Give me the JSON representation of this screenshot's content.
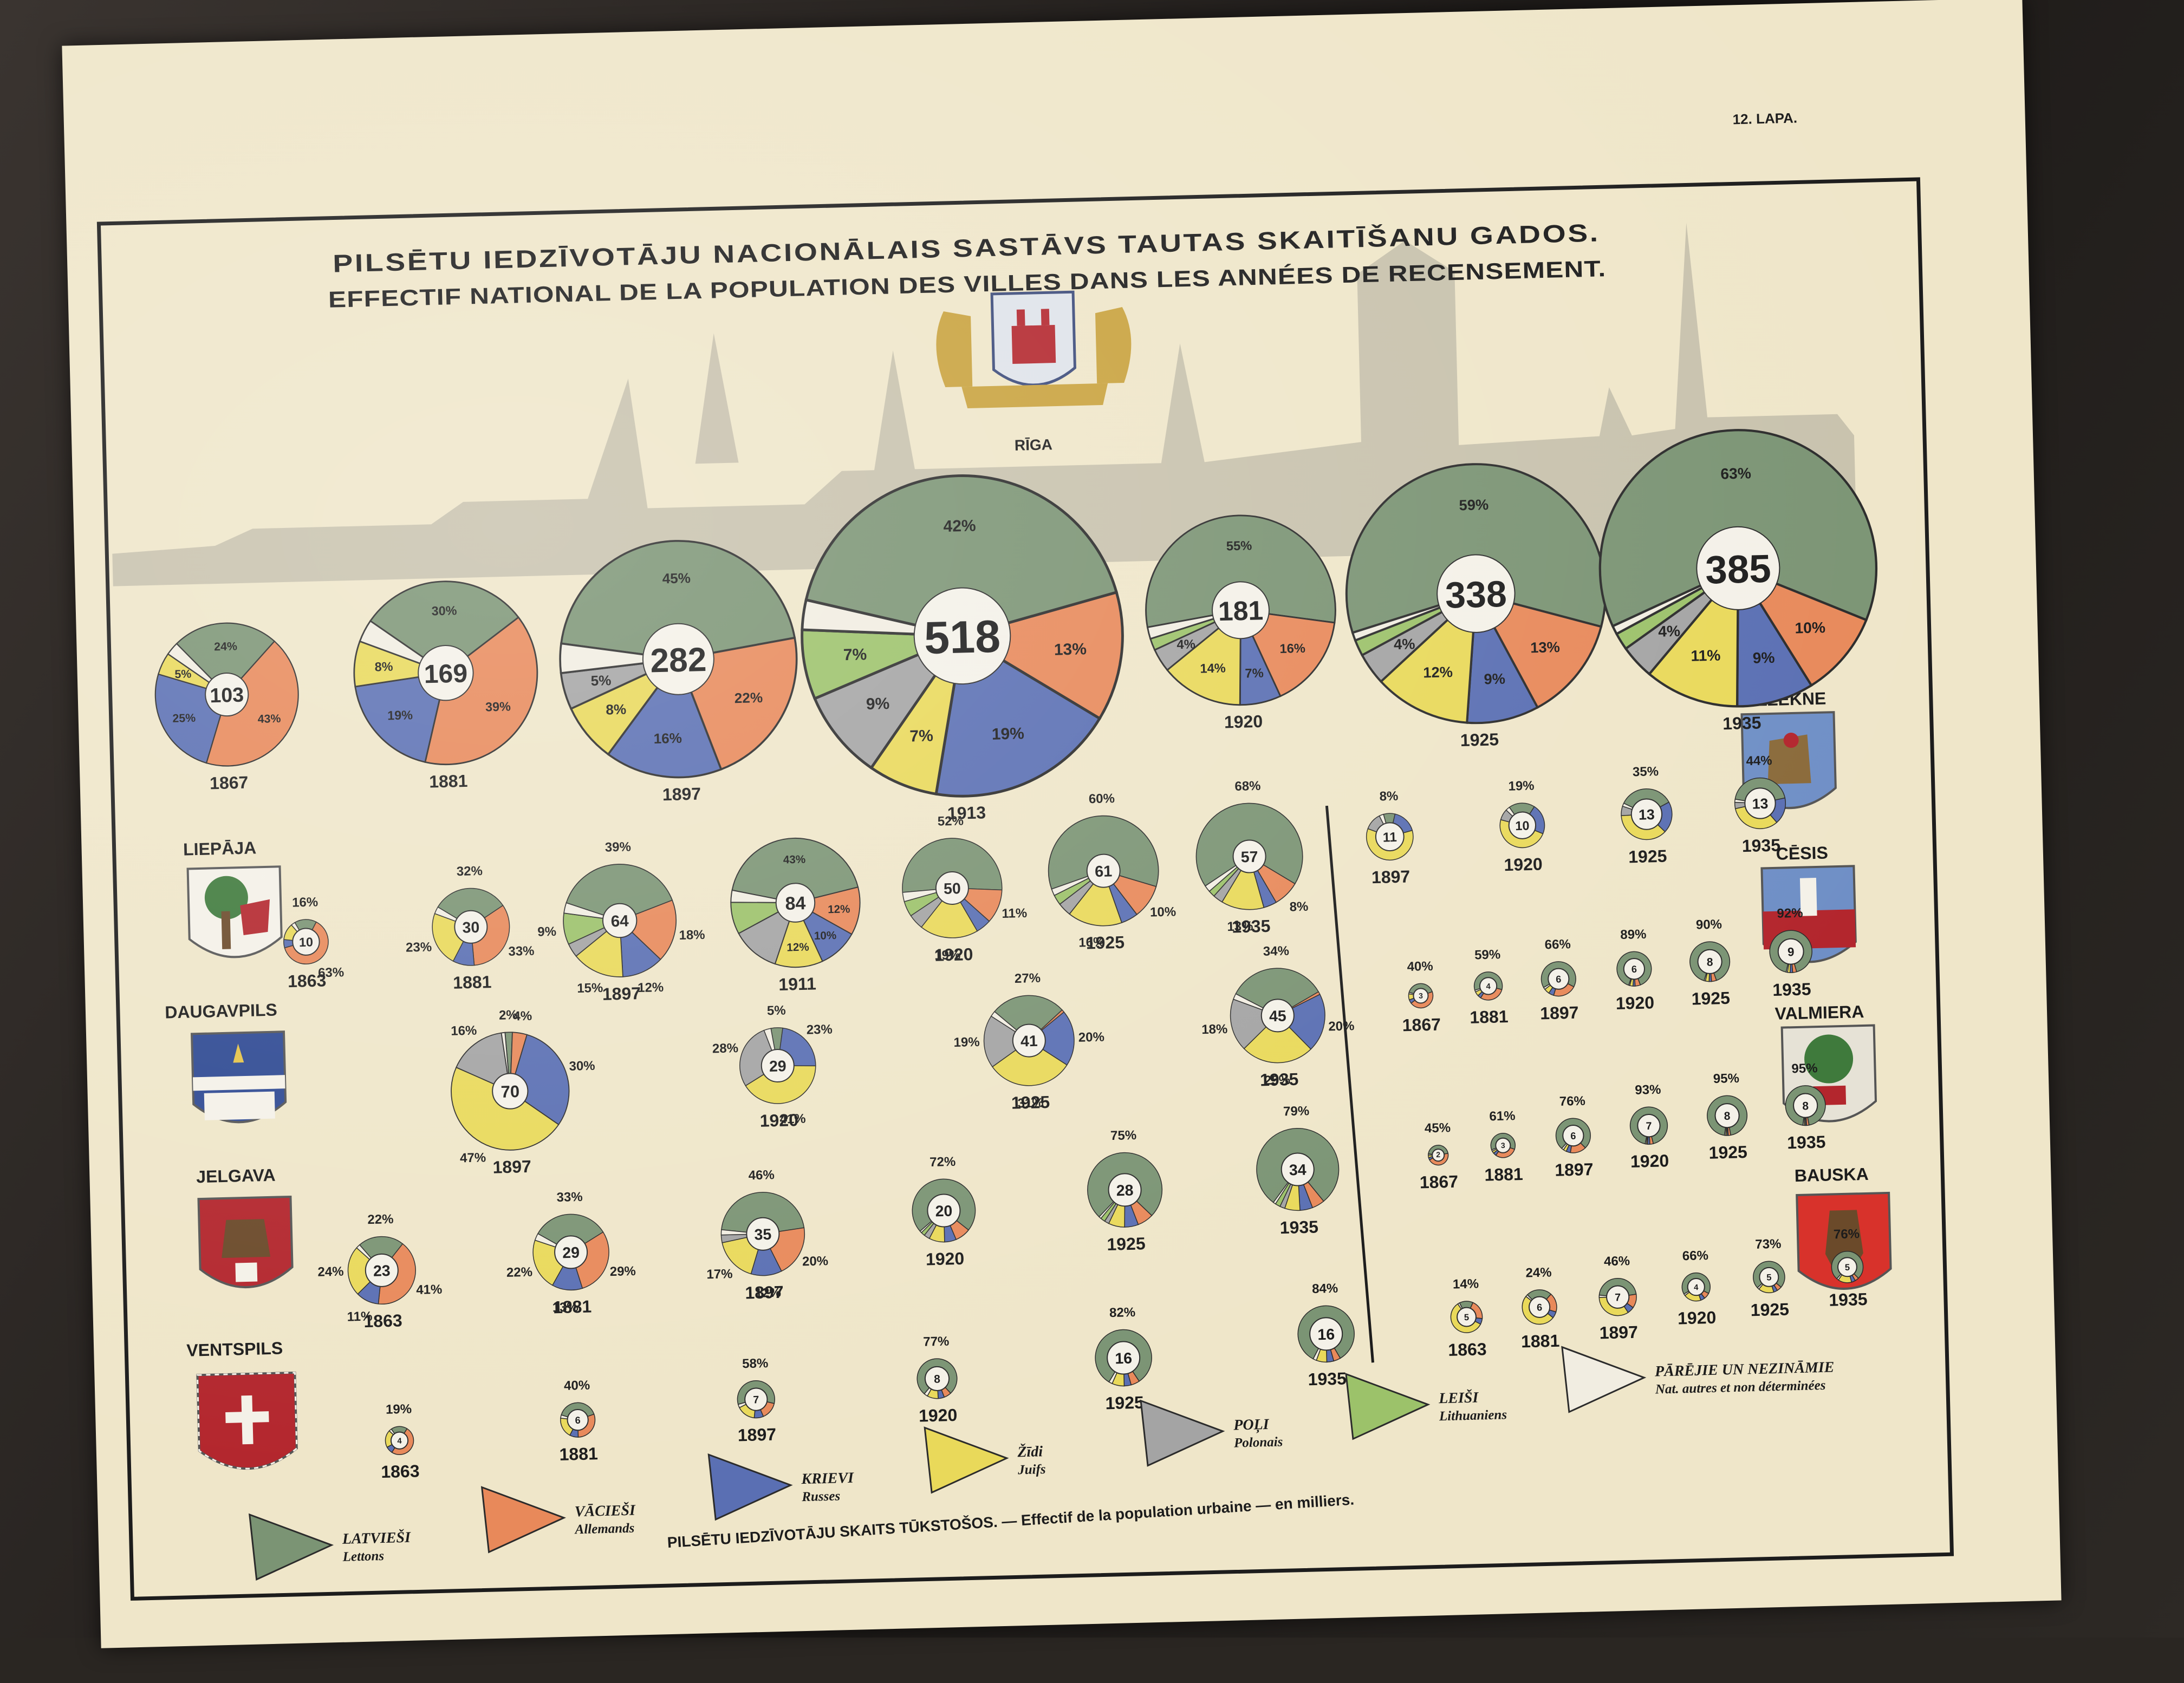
{
  "page_number": "12. LAPA.",
  "title_lv": "PILSĒTU IEDZĪVOTĀJU NACIONĀLAIS SASTĀVS TAUTAS SKAITĪŠANU GADOS.",
  "title_fr": "EFFECTIF NATIONAL DE LA POPULATION DES VILLES DANS LES ANNÉES DE RECENSEMENT.",
  "footer_note": "PILSĒTU IEDZĪVOTĀJU SKAITS TŪKSTOŠOS. — Effectif de la population urbaine — en milliers.",
  "colors": {
    "Latvieši": "#7b9474",
    "Vācieši": "#e8895a",
    "Krievi": "#5a6fb3",
    "Žīdi": "#e9d95a",
    "Poļi": "#a4a4a4",
    "Leiši": "#9cc26a",
    "Pārējie": "#f1ede1"
  },
  "legend": [
    {
      "key": "Latvieši",
      "label": "LATVIEŠI",
      "sub": "Lettons"
    },
    {
      "key": "Vācieši",
      "label": "VĀCIEŠI",
      "sub": "Allemands"
    },
    {
      "key": "Krievi",
      "label": "KRIEVI",
      "sub": "Russes"
    },
    {
      "key": "Žīdi",
      "label": "Žīdi",
      "sub": "Juifs"
    },
    {
      "key": "Poļi",
      "label": "POĻI",
      "sub": "Polonais"
    },
    {
      "key": "Leiši",
      "label": "LEIŠI",
      "sub": "Lithuaniens"
    },
    {
      "key": "Pārējie",
      "label": "PĀRĒJIE UN NEZINĀMIE",
      "sub": "Nat. autres et non déterminées"
    }
  ],
  "chart_data": [
    {
      "type": "pie",
      "city": "RĪGA",
      "pies": [
        {
          "year": "1867",
          "total": 103,
          "slices": {
            "Latvieši": 24,
            "Vācieši": 43,
            "Krievi": 25,
            "Žīdi": 5,
            "Pārējie": 3
          },
          "labels": {
            "Latvieši": "24%",
            "Vācieši": "43%",
            "Krievi": "25%",
            "Žīdi": "5%"
          }
        },
        {
          "year": "1881",
          "total": 169,
          "slices": {
            "Latvieši": 30,
            "Vācieši": 39,
            "Krievi": 19,
            "Žīdi": 8,
            "Pārējie": 4
          },
          "labels": {
            "Latvieši": "30%",
            "Vācieši": "39%",
            "Krievi": "19%",
            "Žīdi": "8%"
          }
        },
        {
          "year": "1897",
          "total": 282,
          "slices": {
            "Latvieši": 45,
            "Vācieši": 22,
            "Krievi": 16,
            "Žīdi": 8,
            "Poļi": 5,
            "Pārējie": 4
          },
          "labels": {
            "Latvieši": "45%",
            "Vācieši": "22%",
            "Krievi": "16%",
            "Žīdi": "8%",
            "Poļi": "5%"
          }
        },
        {
          "year": "1913",
          "total": 518,
          "slices": {
            "Latvieši": 42,
            "Vācieši": 13,
            "Krievi": 19,
            "Žīdi": 7,
            "Poļi": 9,
            "Leiši": 7,
            "Pārējie": 3
          },
          "labels": {
            "Latvieši": "42%",
            "Vācieši": "13%",
            "Krievi": "19%",
            "Žīdi": "7%",
            "Poļi": "9%",
            "Leiši": "7%"
          }
        },
        {
          "year": "1920",
          "total": 181,
          "slices": {
            "Latvieši": 55,
            "Vācieši": 16,
            "Krievi": 7,
            "Žīdi": 14,
            "Poļi": 4,
            "Leiši": 2,
            "Pārējie": 2
          },
          "labels": {
            "Latvieši": "55%",
            "Vācieši": "16%",
            "Krievi": "7%",
            "Žīdi": "14%",
            "Poļi": "4%"
          }
        },
        {
          "year": "1925",
          "total": 338,
          "slices": {
            "Latvieši": 59,
            "Vācieši": 13,
            "Krievi": 9,
            "Žīdi": 12,
            "Poļi": 4,
            "Leiši": 2,
            "Pārējie": 1
          },
          "labels": {
            "Latvieši": "59%",
            "Vācieši": "13%",
            "Krievi": "9%",
            "Žīdi": "12%",
            "Poļi": "4%"
          }
        },
        {
          "year": "1935",
          "total": 385,
          "slices": {
            "Latvieši": 63,
            "Vācieši": 10,
            "Krievi": 9,
            "Žīdi": 11,
            "Poļi": 4,
            "Leiši": 2,
            "Pārējie": 1
          },
          "labels": {
            "Latvieši": "63%",
            "Vācieši": "10%",
            "Krievi": "9%",
            "Žīdi": "11%",
            "Poļi": "4%"
          }
        }
      ]
    },
    {
      "type": "pie",
      "city": "LIEPĀJA",
      "pies": [
        {
          "year": "1863",
          "total": 10,
          "slices": {
            "Latvieši": 16,
            "Vācieši": 63,
            "Krievi": 6,
            "Žīdi": 12,
            "Pārējie": 3
          },
          "labels": {
            "Latvieši": "16%",
            "Vācieši": "63%"
          }
        },
        {
          "year": "1881",
          "total": 30,
          "slices": {
            "Latvieši": 32,
            "Vācieši": 33,
            "Krievi": 9,
            "Žīdi": 23,
            "Pārējie": 3
          },
          "labels": {
            "Latvieši": "32%",
            "Vācieši": "33%",
            "Žīdi": "23%"
          }
        },
        {
          "year": "1897",
          "total": 64,
          "slices": {
            "Latvieši": 39,
            "Vācieši": 18,
            "Krievi": 12,
            "Žīdi": 15,
            "Poļi": 4,
            "Leiši": 9,
            "Pārējie": 3
          },
          "labels": {
            "Latvieši": "39%",
            "Vācieši": "18%",
            "Krievi": "12%",
            "Žīdi": "15%",
            "Leiši": "9%"
          }
        },
        {
          "year": "1911",
          "total": 84,
          "slices": {
            "Latvieši": 43,
            "Vācieši": 12,
            "Krievi": 10,
            "Žīdi": 12,
            "Poļi": 12,
            "Leiši": 8,
            "Pārējie": 3
          },
          "labels": {
            "Latvieši": "43%",
            "Vācieši": "12%",
            "Krievi": "10%",
            "Žīdi": "12%"
          }
        },
        {
          "year": "1920",
          "total": 50,
          "slices": {
            "Latvieši": 52,
            "Vācieši": 11,
            "Krievi": 5,
            "Žīdi": 19,
            "Poļi": 5,
            "Leiši": 5,
            "Pārējie": 3
          },
          "labels": {
            "Latvieši": "52%",
            "Vācieši": "11%",
            "Žīdi": "19%"
          }
        },
        {
          "year": "1925",
          "total": 61,
          "slices": {
            "Latvieši": 60,
            "Vācieši": 10,
            "Krievi": 5,
            "Žīdi": 16,
            "Poļi": 4,
            "Leiši": 3,
            "Pārējie": 2
          },
          "labels": {
            "Latvieši": "60%",
            "Vācieši": "10%",
            "Žīdi": "16%"
          }
        },
        {
          "year": "1935",
          "total": 57,
          "slices": {
            "Latvieši": 68,
            "Vācieši": 8,
            "Krievi": 4,
            "Žīdi": 13,
            "Poļi": 3,
            "Leiši": 2,
            "Pārējie": 2
          },
          "labels": {
            "Latvieši": "68%",
            "Vācieši": "8%",
            "Žīdi": "13%"
          }
        }
      ]
    },
    {
      "type": "pie",
      "city": "DAUGAVPILS",
      "pies": [
        {
          "year": "1897",
          "total": 70,
          "slices": {
            "Latvieši": 2,
            "Vācieši": 4,
            "Krievi": 30,
            "Žīdi": 47,
            "Poļi": 16,
            "Pārējie": 1
          },
          "labels": {
            "Latvieši": "2%",
            "Vācieši": "4%",
            "Krievi": "30%",
            "Žīdi": "47%",
            "Poļi": "16%"
          }
        },
        {
          "year": "1920",
          "total": 29,
          "slices": {
            "Latvieši": 5,
            "Krievi": 23,
            "Žīdi": 41,
            "Poļi": 28,
            "Pārējie": 3
          },
          "labels": {
            "Latvieši": "5%",
            "Krievi": "23%",
            "Žīdi": "41%",
            "Poļi": "28%"
          }
        },
        {
          "year": "1925",
          "total": 41,
          "slices": {
            "Latvieši": 27,
            "Vācieši": 1,
            "Krievi": 20,
            "Žīdi": 31,
            "Poļi": 19,
            "Pārējie": 2
          },
          "labels": {
            "Latvieši": "27%",
            "Krievi": "20%",
            "Žīdi": "31%",
            "Poļi": "19%"
          }
        },
        {
          "year": "1935",
          "total": 45,
          "slices": {
            "Latvieši": 34,
            "Vācieši": 1,
            "Krievi": 20,
            "Žīdi": 25,
            "Poļi": 18,
            "Pārējie": 2
          },
          "labels": {
            "Latvieši": "34%",
            "Krievi": "20%",
            "Žīdi": "25%",
            "Poļi": "18%"
          }
        }
      ]
    },
    {
      "type": "pie",
      "city": "JELGAVA",
      "pies": [
        {
          "year": "1863",
          "total": 23,
          "slices": {
            "Latvieši": 22,
            "Vācieši": 41,
            "Krievi": 11,
            "Žīdi": 24,
            "Pārējie": 2
          },
          "labels": {
            "Latvieši": "22%",
            "Vācieši": "41%",
            "Krievi": "11%",
            "Žīdi": "24%"
          }
        },
        {
          "year": "1881",
          "total": 29,
          "slices": {
            "Latvieši": 33,
            "Vācieši": 29,
            "Krievi": 13,
            "Žīdi": 22,
            "Pārējie": 3
          },
          "labels": {
            "Latvieši": "33%",
            "Vācieši": "29%",
            "Krievi": "13%",
            "Žīdi": "22%"
          }
        },
        {
          "year": "1897",
          "total": 35,
          "slices": {
            "Latvieši": 46,
            "Vācieši": 20,
            "Krievi": 12,
            "Žīdi": 17,
            "Poļi": 3,
            "Pārējie": 2
          },
          "labels": {
            "Latvieši": "46%",
            "Vācieši": "20%",
            "Krievi": "12%",
            "Žīdi": "17%"
          }
        },
        {
          "year": "1920",
          "total": 20,
          "slices": {
            "Latvieši": 72,
            "Vācieši": 8,
            "Krievi": 6,
            "Žīdi": 8,
            "Poļi": 3,
            "Leiši": 2,
            "Pārējie": 1
          },
          "labels": {
            "Latvieši": "72%"
          }
        },
        {
          "year": "1925",
          "total": 28,
          "slices": {
            "Latvieši": 75,
            "Vācieši": 7,
            "Krievi": 6,
            "Žīdi": 7,
            "Poļi": 2,
            "Leiši": 2,
            "Pārējie": 1
          },
          "labels": {
            "Latvieši": "75%"
          }
        },
        {
          "year": "1935",
          "total": 34,
          "slices": {
            "Latvieši": 79,
            "Vācieši": 5,
            "Krievi": 5,
            "Žīdi": 6,
            "Poļi": 2,
            "Leiši": 2,
            "Pārējie": 1
          },
          "labels": {
            "Latvieši": "79%"
          }
        }
      ]
    },
    {
      "type": "pie",
      "city": "VENTSPILS",
      "pies": [
        {
          "year": "1863",
          "total": 4,
          "slices": {
            "Latvieši": 19,
            "Vācieši": 50,
            "Krievi": 8,
            "Žīdi": 20,
            "Pārējie": 3
          },
          "labels": {
            "Latvieši": "19%"
          }
        },
        {
          "year": "1881",
          "total": 6,
          "slices": {
            "Latvieši": 40,
            "Vācieši": 30,
            "Krievi": 8,
            "Žīdi": 19,
            "Pārējie": 3
          },
          "labels": {
            "Latvieši": "40%"
          }
        },
        {
          "year": "1897",
          "total": 7,
          "slices": {
            "Latvieši": 58,
            "Vācieši": 15,
            "Krievi": 8,
            "Žīdi": 16,
            "Pārējie": 3
          },
          "labels": {
            "Latvieši": "58%"
          }
        },
        {
          "year": "1920",
          "total": 8,
          "slices": {
            "Latvieši": 77,
            "Vācieši": 6,
            "Krievi": 5,
            "Žīdi": 9,
            "Pārējie": 3
          },
          "labels": {
            "Latvieši": "77%"
          }
        },
        {
          "year": "1925",
          "total": 16,
          "slices": {
            "Latvieši": 82,
            "Vācieši": 5,
            "Krievi": 4,
            "Žīdi": 7,
            "Pārējie": 2
          },
          "labels": {
            "Latvieši": "82%"
          }
        },
        {
          "year": "1935",
          "total": 16,
          "slices": {
            "Latvieši": 84,
            "Vācieši": 4,
            "Krievi": 4,
            "Žīdi": 6,
            "Pārējie": 2
          },
          "labels": {
            "Latvieši": "84%"
          }
        }
      ]
    },
    {
      "type": "pie",
      "city": "RĒZEKNE",
      "pies": [
        {
          "year": "1897",
          "total": 11,
          "slices": {
            "Latvieši": 8,
            "Krievi": 17,
            "Žīdi": 60,
            "Poļi": 12,
            "Pārējie": 3
          },
          "labels": {
            "Latvieši": "8%"
          }
        },
        {
          "year": "1920",
          "total": 10,
          "slices": {
            "Latvieši": 19,
            "Krievi": 22,
            "Žīdi": 48,
            "Poļi": 8,
            "Pārējie": 3
          },
          "labels": {
            "Latvieši": "19%"
          }
        },
        {
          "year": "1925",
          "total": 13,
          "slices": {
            "Latvieši": 35,
            "Krievi": 20,
            "Žīdi": 37,
            "Poļi": 6,
            "Pārējie": 2
          },
          "labels": {
            "Latvieši": "35%"
          }
        },
        {
          "year": "1935",
          "total": 13,
          "slices": {
            "Latvieši": 44,
            "Krievi": 17,
            "Žīdi": 33,
            "Poļi": 4,
            "Pārējie": 2
          },
          "labels": {
            "Latvieši": "44%"
          }
        }
      ]
    },
    {
      "type": "pie",
      "city": "CĒSIS",
      "pies": [
        {
          "year": "1867",
          "total": 3,
          "slices": {
            "Latvieši": 40,
            "Vācieši": 45,
            "Krievi": 5,
            "Žīdi": 8,
            "Pārējie": 2
          },
          "labels": {
            "Latvieši": "40%"
          }
        },
        {
          "year": "1881",
          "total": 4,
          "slices": {
            "Latvieši": 59,
            "Vācieši": 30,
            "Krievi": 4,
            "Žīdi": 5,
            "Pārējie": 2
          },
          "labels": {
            "Latvieši": "59%"
          }
        },
        {
          "year": "1897",
          "total": 6,
          "slices": {
            "Latvieši": 66,
            "Vācieši": 22,
            "Krievi": 5,
            "Žīdi": 5,
            "Pārējie": 2
          },
          "labels": {
            "Latvieši": "66%"
          }
        },
        {
          "year": "1920",
          "total": 6,
          "slices": {
            "Latvieši": 89,
            "Vācieši": 5,
            "Krievi": 2,
            "Žīdi": 3,
            "Pārējie": 1
          },
          "labels": {
            "Latvieši": "89%"
          }
        },
        {
          "year": "1925",
          "total": 8,
          "slices": {
            "Latvieši": 90,
            "Vācieši": 4,
            "Krievi": 2,
            "Žīdi": 3,
            "Pārējie": 1
          },
          "labels": {
            "Latvieši": "90%"
          }
        },
        {
          "year": "1935",
          "total": 9,
          "slices": {
            "Latvieši": 92,
            "Vācieši": 3,
            "Krievi": 2,
            "Žīdi": 2,
            "Pārējie": 1
          },
          "labels": {
            "Latvieši": "92%"
          }
        }
      ]
    },
    {
      "type": "pie",
      "city": "VALMIERA",
      "pies": [
        {
          "year": "1867",
          "total": 2,
          "slices": {
            "Latvieši": 45,
            "Vācieši": 45,
            "Krievi": 4,
            "Žīdi": 4,
            "Pārējie": 2
          },
          "labels": {
            "Latvieši": "45%"
          }
        },
        {
          "year": "1881",
          "total": 3,
          "slices": {
            "Latvieši": 61,
            "Vācieši": 30,
            "Krievi": 4,
            "Žīdi": 3,
            "Pārējie": 2
          },
          "labels": {
            "Latvieši": "61%"
          }
        },
        {
          "year": "1897",
          "total": 6,
          "slices": {
            "Latvieši": 76,
            "Vācieši": 15,
            "Krievi": 4,
            "Žīdi": 3,
            "Pārējie": 2
          },
          "labels": {
            "Latvieši": "76%"
          }
        },
        {
          "year": "1920",
          "total": 7,
          "slices": {
            "Latvieši": 93,
            "Vācieši": 3,
            "Krievi": 2,
            "Žīdi": 1,
            "Pārējie": 1
          },
          "labels": {
            "Latvieši": "93%"
          }
        },
        {
          "year": "1925",
          "total": 8,
          "slices": {
            "Latvieši": 95,
            "Vācieši": 2,
            "Krievi": 1,
            "Žīdi": 1,
            "Pārējie": 1
          },
          "labels": {
            "Latvieši": "95%"
          }
        },
        {
          "year": "1935",
          "total": 8,
          "slices": {
            "Latvieši": 95,
            "Vācieši": 2,
            "Krievi": 1,
            "Žīdi": 1,
            "Pārējie": 1
          },
          "labels": {
            "Latvieši": "95%"
          }
        }
      ]
    },
    {
      "type": "pie",
      "city": "BAUSKA",
      "pies": [
        {
          "year": "1863",
          "total": 5,
          "slices": {
            "Latvieši": 14,
            "Vācieši": 20,
            "Krievi": 6,
            "Žīdi": 58,
            "Pārējie": 2
          },
          "labels": {
            "Latvieši": "14%"
          }
        },
        {
          "year": "1881",
          "total": 6,
          "slices": {
            "Latvieši": 24,
            "Vācieši": 18,
            "Krievi": 6,
            "Žīdi": 50,
            "Pārējie": 2
          },
          "labels": {
            "Latvieši": "24%"
          }
        },
        {
          "year": "1897",
          "total": 7,
          "slices": {
            "Latvieši": 46,
            "Vācieši": 12,
            "Krievi": 6,
            "Žīdi": 34,
            "Pārējie": 2
          },
          "labels": {
            "Latvieši": "46%"
          }
        },
        {
          "year": "1920",
          "total": 4,
          "slices": {
            "Latvieši": 66,
            "Vācieši": 7,
            "Krievi": 5,
            "Žīdi": 20,
            "Pārējie": 2
          },
          "labels": {
            "Latvieši": "66%"
          }
        },
        {
          "year": "1925",
          "total": 5,
          "slices": {
            "Latvieši": 73,
            "Vācieši": 5,
            "Krievi": 4,
            "Žīdi": 16,
            "Pārējie": 2
          },
          "labels": {
            "Latvieši": "73%"
          }
        },
        {
          "year": "1935",
          "total": 5,
          "slices": {
            "Latvieši": 76,
            "Vācieši": 4,
            "Krievi": 4,
            "Žīdi": 14,
            "Pārējie": 2
          },
          "labels": {
            "Latvieši": "76%"
          }
        }
      ]
    }
  ]
}
